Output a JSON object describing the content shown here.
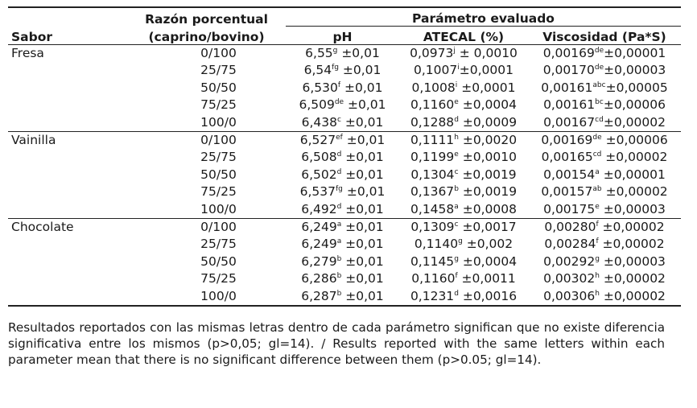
{
  "headers": {
    "sabor": "Sabor",
    "ratio_line1": "Razón porcentual",
    "ratio_line2": "(caprino/bovino)",
    "param": "Parámetro evaluado",
    "ph": "pH",
    "atecal": "ATECAL (%)",
    "visc": "Viscosidad (Pa*S)"
  },
  "groups": [
    {
      "sabor": "Fresa",
      "rows": [
        {
          "ratio": "0/100",
          "ph": {
            "v": "6,55",
            "s": "g",
            "e": " ±0,01"
          },
          "ate": {
            "v": "0,0973",
            "s": "j",
            "e": " ± 0,0010"
          },
          "vis": {
            "v": "0,00169",
            "s": "de",
            "e": "±0,00001"
          }
        },
        {
          "ratio": "25/75",
          "ph": {
            "v": "6,54",
            "s": "fg",
            "e": " ±0,01"
          },
          "ate": {
            "v": "0,1007",
            "s": "i",
            "e": "±0,0001"
          },
          "vis": {
            "v": "0,00170",
            "s": "de",
            "e": "±0,00003"
          }
        },
        {
          "ratio": "50/50",
          "ph": {
            "v": "6,530",
            "s": "f",
            "e": " ±0,01"
          },
          "ate": {
            "v": "0,1008",
            "s": "i",
            "e": " ±0,0001"
          },
          "vis": {
            "v": "0,00161",
            "s": "abc",
            "e": "±0,00005"
          }
        },
        {
          "ratio": "75/25",
          "ph": {
            "v": "6,509",
            "s": "de",
            "e": " ±0,01"
          },
          "ate": {
            "v": "0,1160",
            "s": "e",
            "e": " ±0,0004"
          },
          "vis": {
            "v": "0,00161",
            "s": "bc",
            "e": "±0,00006"
          }
        },
        {
          "ratio": "100/0",
          "ph": {
            "v": "6,438",
            "s": "c",
            "e": " ±0,01"
          },
          "ate": {
            "v": "0,1288",
            "s": "d",
            "e": " ±0,0009"
          },
          "vis": {
            "v": "0,00167",
            "s": "cd",
            "e": "±0,00002"
          }
        }
      ]
    },
    {
      "sabor": "Vainilla",
      "rows": [
        {
          "ratio": "0/100",
          "ph": {
            "v": "6,527",
            "s": "ef",
            "e": " ±0,01"
          },
          "ate": {
            "v": "0,1111",
            "s": "h",
            "e": " ±0,0020"
          },
          "vis": {
            "v": "0,00169",
            "s": "de",
            "e": " ±0,00006"
          }
        },
        {
          "ratio": "25/75",
          "ph": {
            "v": "6,508",
            "s": "d",
            "e": " ±0,01"
          },
          "ate": {
            "v": "0,1199",
            "s": "e",
            "e": " ±0,0010"
          },
          "vis": {
            "v": "0,00165",
            "s": "cd",
            "e": " ±0,00002"
          }
        },
        {
          "ratio": "50/50",
          "ph": {
            "v": "6,502",
            "s": "d",
            "e": " ±0,01"
          },
          "ate": {
            "v": "0,1304",
            "s": "c",
            "e": " ±0,0019"
          },
          "vis": {
            "v": "0,00154",
            "s": "a",
            "e": " ±0,00001"
          }
        },
        {
          "ratio": "75/25",
          "ph": {
            "v": "6,537",
            "s": "fg",
            "e": " ±0,01"
          },
          "ate": {
            "v": "0,1367",
            "s": "b",
            "e": " ±0,0019"
          },
          "vis": {
            "v": "0,00157",
            "s": "ab",
            "e": " ±0,00002"
          }
        },
        {
          "ratio": "100/0",
          "ph": {
            "v": "6,492",
            "s": "d",
            "e": " ±0,01"
          },
          "ate": {
            "v": "0,1458",
            "s": "a",
            "e": " ±0,0008"
          },
          "vis": {
            "v": "0,00175",
            "s": "e",
            "e": " ±0,00003"
          }
        }
      ]
    },
    {
      "sabor": "Chocolate",
      "rows": [
        {
          "ratio": "0/100",
          "ph": {
            "v": "6,249",
            "s": "a",
            "e": " ±0,01"
          },
          "ate": {
            "v": "0,1309",
            "s": "c",
            "e": " ±0,0017"
          },
          "vis": {
            "v": "0,00280",
            "s": "f",
            "e": " ±0,00002"
          }
        },
        {
          "ratio": "25/75",
          "ph": {
            "v": "6,249",
            "s": "a",
            "e": " ±0,01"
          },
          "ate": {
            "v": "0,1140",
            "s": "g",
            "e": " ±0,002"
          },
          "vis": {
            "v": "0,00284",
            "s": "f",
            "e": " ±0,00002"
          }
        },
        {
          "ratio": "50/50",
          "ph": {
            "v": "6,279",
            "s": "b",
            "e": " ±0,01"
          },
          "ate": {
            "v": "0,1145",
            "s": "g",
            "e": " ±0,0004"
          },
          "vis": {
            "v": "0,00292",
            "s": "g",
            "e": " ±0,00003"
          }
        },
        {
          "ratio": "75/25",
          "ph": {
            "v": "6,286",
            "s": "b",
            "e": " ±0,01"
          },
          "ate": {
            "v": "0,1160",
            "s": "f",
            "e": " ±0,0011"
          },
          "vis": {
            "v": "0,00302",
            "s": "h",
            "e": " ±0,00002"
          }
        },
        {
          "ratio": "100/0",
          "ph": {
            "v": "6,287",
            "s": "b",
            "e": " ±0,01"
          },
          "ate": {
            "v": "0,1231",
            "s": "d",
            "e": " ±0,0016"
          },
          "vis": {
            "v": "0,00306",
            "s": "h",
            "e": " ±0,00002"
          }
        }
      ]
    }
  ],
  "note": "Resultados reportados con las mismas letras dentro de cada parámetro significan que no existe diferencia significativa entre los mismos (p>0,05; gl=14). / Results reported with the same letters within each parameter mean that there is no significant difference between them (p>0.05; gl=14)."
}
